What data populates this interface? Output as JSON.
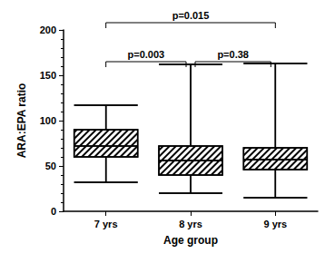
{
  "chart_data": {
    "type": "boxplot",
    "x_label": "Age group",
    "y_label": "ARA:EPA ratio",
    "categories": [
      "7 yrs",
      "8 yrs",
      "9 yrs"
    ],
    "values": [
      [
        32,
        60,
        72,
        90,
        117
      ],
      [
        20,
        40,
        56,
        72,
        162
      ],
      [
        15,
        46,
        57,
        70,
        163
      ]
    ],
    "color": "#000000",
    "ylim": [
      0,
      200
    ],
    "yticks": [
      0,
      50,
      100,
      150,
      200
    ],
    "grid": false,
    "comparisons": [
      {
        "from": "7 yrs",
        "to": "9 yrs",
        "label": "p=0.015"
      },
      {
        "from": "7 yrs",
        "to": "8 yrs",
        "label": "p=0.003"
      },
      {
        "from": "8 yrs",
        "to": "9 yrs",
        "label": "p=0.38"
      }
    ]
  }
}
